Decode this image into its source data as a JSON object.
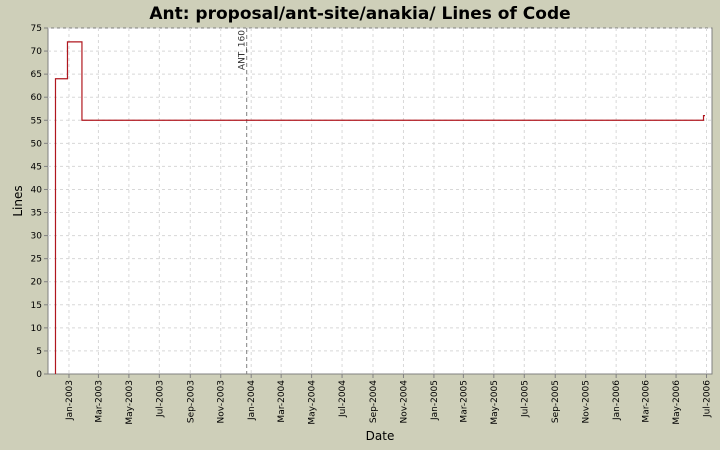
{
  "chart_data": {
    "type": "line",
    "title": "Ant: proposal/ant-site/anakia/ Lines of Code",
    "xlabel": "Date",
    "ylabel": "Lines",
    "xlim": [
      "2002-11-20",
      "2006-07-12"
    ],
    "ylim": [
      0,
      75
    ],
    "yticks": [
      0,
      5,
      10,
      15,
      20,
      25,
      30,
      35,
      40,
      45,
      50,
      55,
      60,
      65,
      70,
      75
    ],
    "xticks": [
      {
        "date": "2003-01-01",
        "label": "Jan-2003"
      },
      {
        "date": "2003-03-01",
        "label": "Mar-2003"
      },
      {
        "date": "2003-05-01",
        "label": "May-2003"
      },
      {
        "date": "2003-07-01",
        "label": "Jul-2003"
      },
      {
        "date": "2003-09-01",
        "label": "Sep-2003"
      },
      {
        "date": "2003-11-01",
        "label": "Nov-2003"
      },
      {
        "date": "2004-01-01",
        "label": "Jan-2004"
      },
      {
        "date": "2004-03-01",
        "label": "Mar-2004"
      },
      {
        "date": "2004-05-01",
        "label": "May-2004"
      },
      {
        "date": "2004-07-01",
        "label": "Jul-2004"
      },
      {
        "date": "2004-09-01",
        "label": "Sep-2004"
      },
      {
        "date": "2004-11-01",
        "label": "Nov-2004"
      },
      {
        "date": "2005-01-01",
        "label": "Jan-2005"
      },
      {
        "date": "2005-03-01",
        "label": "Mar-2005"
      },
      {
        "date": "2005-05-01",
        "label": "May-2005"
      },
      {
        "date": "2005-07-01",
        "label": "Jul-2005"
      },
      {
        "date": "2005-09-01",
        "label": "Sep-2005"
      },
      {
        "date": "2005-11-01",
        "label": "Nov-2005"
      },
      {
        "date": "2006-01-01",
        "label": "Jan-2006"
      },
      {
        "date": "2006-03-01",
        "label": "Mar-2006"
      },
      {
        "date": "2006-05-01",
        "label": "May-2006"
      },
      {
        "date": "2006-07-01",
        "label": "Jul-2006"
      }
    ],
    "grid": true,
    "series": [
      {
        "color": "#b0171f",
        "step": true,
        "points": [
          {
            "x": "2002-12-05",
            "y": 0
          },
          {
            "x": "2002-12-05",
            "y": 64
          },
          {
            "x": "2002-12-29",
            "y": 72
          },
          {
            "x": "2003-01-27",
            "y": 55
          },
          {
            "x": "2006-06-25",
            "y": 55
          },
          {
            "x": "2006-06-25",
            "y": 56
          },
          {
            "x": "2006-06-28",
            "y": 56
          }
        ]
      }
    ],
    "markers": [
      {
        "x": "2003-12-23",
        "label": "ANT_160",
        "color": "#808080"
      }
    ]
  }
}
